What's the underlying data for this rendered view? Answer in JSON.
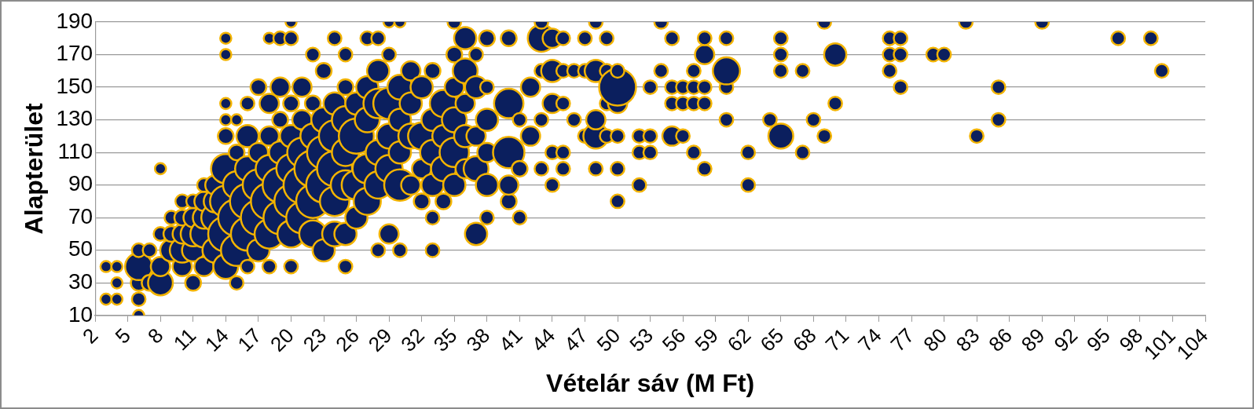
{
  "chart_data": {
    "type": "bubble",
    "x_label": "Vételár sáv (M Ft)",
    "y_label": "Alapterület",
    "color": "#0b1f5e",
    "edge_color": "#f2b300",
    "grid": "y",
    "xlim": [
      2,
      104
    ],
    "xticks": [
      2,
      5,
      8,
      11,
      14,
      17,
      20,
      23,
      26,
      29,
      32,
      35,
      38,
      41,
      44,
      47,
      50,
      53,
      56,
      59,
      62,
      65,
      68,
      71,
      74,
      77,
      80,
      83,
      86,
      89,
      92,
      95,
      98,
      101,
      104
    ],
    "ylim": [
      10,
      190
    ],
    "yticks": [
      10,
      30,
      50,
      70,
      90,
      110,
      130,
      150,
      170,
      190
    ],
    "x": [
      3,
      3,
      4,
      4,
      4,
      6,
      6,
      6,
      6,
      6,
      7,
      7,
      8,
      8,
      8,
      8,
      9,
      9,
      9,
      10,
      10,
      10,
      10,
      10,
      11,
      11,
      11,
      11,
      11,
      12,
      12,
      12,
      12,
      12,
      13,
      13,
      13,
      13,
      14,
      14,
      14,
      14,
      14,
      14,
      14,
      14,
      14,
      15,
      15,
      15,
      15,
      15,
      15,
      16,
      16,
      16,
      16,
      16,
      16,
      17,
      17,
      17,
      17,
      17,
      18,
      18,
      18,
      18,
      18,
      18,
      18,
      19,
      19,
      19,
      19,
      19,
      19,
      20,
      20,
      20,
      20,
      20,
      20,
      20,
      20,
      21,
      21,
      21,
      21,
      21,
      22,
      22,
      22,
      22,
      22,
      22,
      23,
      23,
      23,
      23,
      23,
      24,
      24,
      24,
      24,
      24,
      24,
      25,
      25,
      25,
      25,
      25,
      25,
      25,
      26,
      26,
      26,
      26,
      27,
      27,
      27,
      27,
      27,
      28,
      28,
      28,
      28,
      28,
      28,
      29,
      29,
      29,
      29,
      29,
      29,
      30,
      30,
      30,
      30,
      30,
      30,
      31,
      31,
      31,
      31,
      32,
      32,
      32,
      32,
      33,
      33,
      33,
      33,
      33,
      33,
      34,
      34,
      34,
      34,
      35,
      35,
      35,
      35,
      35,
      35,
      36,
      36,
      36,
      36,
      36,
      37,
      37,
      37,
      37,
      37,
      38,
      38,
      38,
      38,
      38,
      38,
      40,
      40,
      40,
      40,
      40,
      41,
      41,
      41,
      42,
      42,
      43,
      43,
      43,
      43,
      43,
      44,
      44,
      44,
      44,
      44,
      45,
      45,
      45,
      45,
      45,
      46,
      46,
      47,
      47,
      47,
      48,
      48,
      48,
      48,
      48,
      49,
      49,
      49,
      49,
      50,
      50,
      50,
      50,
      50,
      50,
      52,
      52,
      52,
      53,
      53,
      53,
      54,
      54,
      55,
      55,
      55,
      55,
      56,
      56,
      56,
      57,
      57,
      57,
      57,
      58,
      58,
      58,
      58,
      58,
      60,
      60,
      60,
      60,
      62,
      62,
      64,
      65,
      65,
      65,
      65,
      67,
      67,
      68,
      69,
      69,
      70,
      70,
      75,
      75,
      75,
      76,
      76,
      76,
      79,
      80,
      82,
      83,
      85,
      85,
      89,
      96,
      99,
      100
    ],
    "values": [
      20,
      40,
      20,
      30,
      40,
      10,
      20,
      30,
      40,
      50,
      30,
      50,
      30,
      40,
      60,
      100,
      50,
      60,
      70,
      40,
      50,
      60,
      70,
      80,
      30,
      50,
      60,
      70,
      80,
      40,
      60,
      70,
      80,
      90,
      50,
      70,
      80,
      90,
      40,
      60,
      80,
      100,
      120,
      130,
      140,
      170,
      180,
      30,
      50,
      70,
      90,
      110,
      130,
      40,
      60,
      80,
      100,
      120,
      140,
      50,
      70,
      90,
      110,
      150,
      40,
      60,
      80,
      100,
      120,
      140,
      180,
      70,
      90,
      110,
      130,
      150,
      180,
      40,
      60,
      80,
      100,
      120,
      140,
      180,
      190,
      70,
      90,
      110,
      130,
      150,
      60,
      80,
      100,
      120,
      140,
      170,
      50,
      90,
      110,
      130,
      160,
      60,
      80,
      100,
      120,
      140,
      180,
      40,
      60,
      90,
      110,
      130,
      150,
      170,
      70,
      90,
      120,
      140,
      80,
      100,
      130,
      150,
      180,
      50,
      90,
      110,
      140,
      160,
      180,
      60,
      100,
      120,
      140,
      170,
      190,
      50,
      90,
      110,
      130,
      150,
      190,
      90,
      120,
      140,
      160,
      80,
      100,
      120,
      150,
      50,
      70,
      90,
      110,
      130,
      160,
      80,
      100,
      120,
      140,
      90,
      110,
      130,
      150,
      170,
      190,
      100,
      120,
      140,
      160,
      180,
      60,
      100,
      120,
      150,
      170,
      70,
      90,
      110,
      130,
      150,
      180,
      80,
      90,
      110,
      140,
      180,
      70,
      100,
      130,
      120,
      150,
      100,
      130,
      160,
      180,
      190,
      90,
      110,
      140,
      160,
      180,
      100,
      110,
      140,
      160,
      180,
      130,
      160,
      120,
      160,
      180,
      100,
      120,
      130,
      160,
      190,
      120,
      140,
      160,
      180,
      80,
      100,
      120,
      140,
      150,
      160,
      90,
      110,
      120,
      110,
      120,
      150,
      160,
      190,
      120,
      140,
      150,
      180,
      120,
      140,
      150,
      110,
      140,
      150,
      160,
      100,
      140,
      150,
      170,
      180,
      130,
      150,
      160,
      180,
      90,
      110,
      130,
      120,
      160,
      170,
      180,
      110,
      160,
      130,
      120,
      190,
      140,
      170,
      160,
      170,
      180,
      150,
      170,
      180,
      170,
      170,
      190,
      120,
      130,
      150,
      190,
      180,
      180,
      160
    ],
    "sizes": [
      2,
      2,
      2,
      2,
      2,
      2,
      3,
      4,
      12,
      3,
      4,
      3,
      10,
      6,
      3,
      2,
      8,
      4,
      3,
      6,
      10,
      6,
      4,
      3,
      4,
      8,
      10,
      6,
      3,
      6,
      12,
      8,
      6,
      3,
      10,
      12,
      8,
      6,
      10,
      20,
      16,
      14,
      4,
      2,
      2,
      2,
      2,
      3,
      16,
      22,
      12,
      4,
      2,
      3,
      18,
      20,
      10,
      8,
      3,
      8,
      20,
      16,
      6,
      4,
      3,
      14,
      22,
      12,
      6,
      6,
      2,
      18,
      20,
      8,
      4,
      6,
      3,
      3,
      12,
      18,
      14,
      8,
      4,
      3,
      2,
      16,
      22,
      14,
      6,
      6,
      12,
      18,
      22,
      10,
      4,
      3,
      8,
      20,
      18,
      10,
      4,
      10,
      14,
      20,
      16,
      8,
      3,
      3,
      8,
      14,
      12,
      12,
      4,
      3,
      8,
      14,
      20,
      8,
      12,
      14,
      10,
      8,
      3,
      3,
      12,
      10,
      14,
      8,
      3,
      6,
      12,
      10,
      16,
      3,
      2,
      3,
      16,
      8,
      8,
      10,
      2,
      6,
      10,
      8,
      6,
      4,
      6,
      12,
      8,
      3,
      3,
      8,
      10,
      8,
      4,
      4,
      10,
      8,
      12,
      8,
      14,
      10,
      6,
      4,
      3,
      6,
      8,
      6,
      10,
      8,
      8,
      10,
      6,
      8,
      3,
      3,
      8,
      6,
      8,
      3,
      4,
      4,
      6,
      16,
      14,
      4,
      3,
      4,
      3,
      6,
      6,
      3,
      3,
      3,
      12,
      3,
      3,
      3,
      6,
      8,
      6,
      3,
      3,
      3,
      3,
      3,
      3,
      3,
      3,
      3,
      3,
      3,
      10,
      6,
      8,
      3,
      3,
      3,
      3,
      3,
      3,
      3,
      3,
      6,
      22,
      3,
      3,
      3,
      3,
      3,
      3,
      3,
      3,
      3,
      6,
      3,
      3,
      3,
      3,
      3,
      3,
      3,
      3,
      3,
      3,
      3,
      3,
      3,
      6,
      3,
      3,
      3,
      12,
      3,
      3,
      3,
      3,
      10,
      3,
      3,
      3,
      3,
      3,
      3,
      3,
      3,
      3,
      8,
      3,
      3,
      3,
      3,
      3,
      3,
      3,
      3,
      3,
      3,
      3,
      3,
      3,
      3,
      3,
      3
    ]
  }
}
